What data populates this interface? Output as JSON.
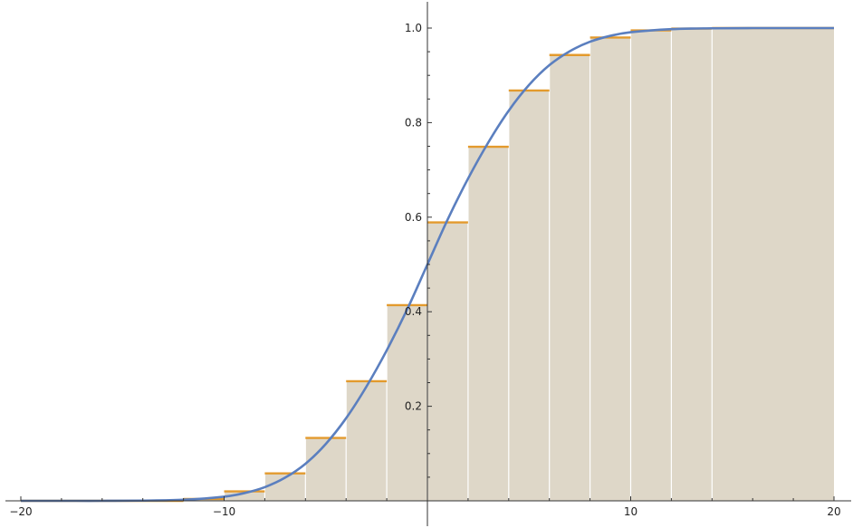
{
  "chart_data": {
    "type": "line",
    "title": "",
    "xlabel": "",
    "ylabel": "",
    "xlim": [
      -20,
      20
    ],
    "ylim": [
      0,
      1.05
    ],
    "x_ticks": [
      -20,
      -10,
      10,
      20
    ],
    "x_tick_labels": [
      "−20",
      "−10",
      "10",
      "20"
    ],
    "y_ticks": [
      0.2,
      0.4,
      0.6,
      0.8,
      1.0
    ],
    "y_tick_labels": [
      "0.2",
      "0.4",
      "0.6",
      "0.8",
      "1.0"
    ],
    "grid": false,
    "legend": "none",
    "colors": {
      "curve": "#5b7fbf",
      "step": "#e39a2d",
      "fill": "#ded7c8",
      "divider": "#ffffff",
      "axis": "#333333"
    },
    "step_function": {
      "intervals": [
        {
          "x0": -20,
          "x1": -12,
          "y": 0.0
        },
        {
          "x0": -12,
          "x1": -10,
          "y": 0.004
        },
        {
          "x0": -10,
          "x1": -8,
          "y": 0.02
        },
        {
          "x0": -8,
          "x1": -6,
          "y": 0.058
        },
        {
          "x0": -6,
          "x1": -4,
          "y": 0.133
        },
        {
          "x0": -4,
          "x1": -2,
          "y": 0.253
        },
        {
          "x0": -2,
          "x1": 0,
          "y": 0.414
        },
        {
          "x0": 0,
          "x1": 2,
          "y": 0.589
        },
        {
          "x0": 2,
          "x1": 4,
          "y": 0.749
        },
        {
          "x0": 4,
          "x1": 6,
          "y": 0.868
        },
        {
          "x0": 6,
          "x1": 8,
          "y": 0.943
        },
        {
          "x0": 8,
          "x1": 10,
          "y": 0.98
        },
        {
          "x0": 10,
          "x1": 12,
          "y": 0.995
        },
        {
          "x0": 12,
          "x1": 14,
          "y": 0.999
        },
        {
          "x0": 14,
          "x1": 20,
          "y": 1.0
        }
      ]
    },
    "curve": {
      "name": "",
      "x": [
        -20,
        -18,
        -16,
        -14,
        -12,
        -10,
        -9,
        -8,
        -7,
        -6,
        -5,
        -4,
        -3,
        -2,
        -1,
        0,
        1,
        2,
        3,
        4,
        5,
        6,
        7,
        8,
        9,
        10,
        12,
        14,
        16,
        18,
        20
      ],
      "y": [
        0.0,
        0.0,
        0.0,
        0.0005,
        0.0023,
        0.0088,
        0.0164,
        0.0289,
        0.049,
        0.0784,
        0.1203,
        0.1747,
        0.2416,
        0.3184,
        0.4045,
        0.5,
        0.5955,
        0.6816,
        0.7584,
        0.8253,
        0.8797,
        0.9216,
        0.951,
        0.9711,
        0.9836,
        0.9912,
        0.9977,
        0.9995,
        1.0,
        1.0,
        1.0
      ]
    }
  }
}
